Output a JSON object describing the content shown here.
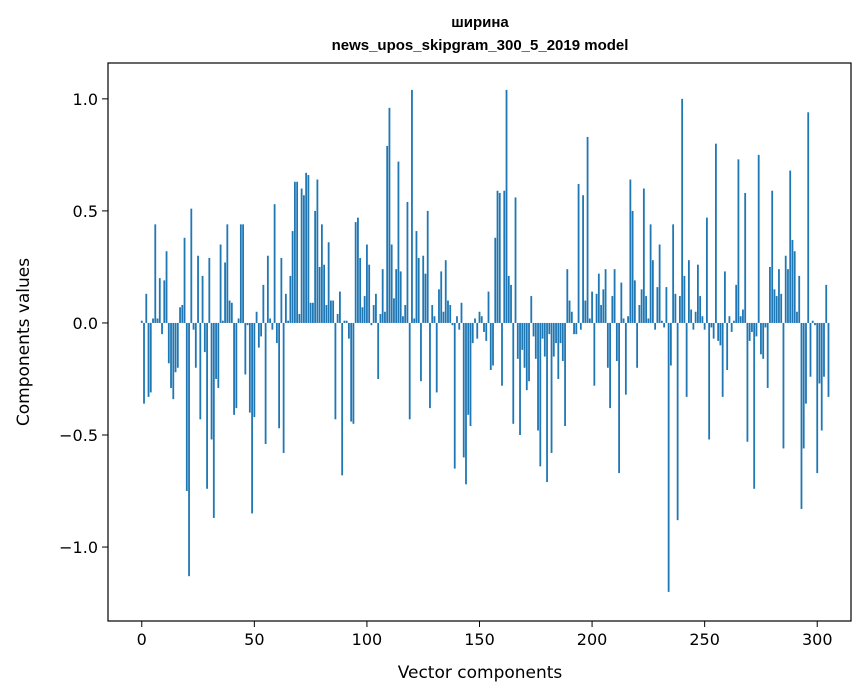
{
  "chart_data": {
    "type": "bar",
    "title": "ширина",
    "subtitle": "news_upos_skipgram_300_5_2019 model",
    "xlabel": "Vector components",
    "ylabel": "Components values",
    "xlim": [
      -15,
      315
    ],
    "ylim": [
      -1.33,
      1.16
    ],
    "xticks": [
      0,
      50,
      100,
      150,
      200,
      250,
      300
    ],
    "xtick_labels": [
      "0",
      "50",
      "100",
      "150",
      "200",
      "250",
      "300"
    ],
    "yticks": [
      -1.0,
      -0.5,
      0.0,
      0.5,
      1.0
    ],
    "ytick_labels": [
      "−1.0",
      "−0.5",
      "0.0",
      "0.5",
      "1.0"
    ],
    "grid": false,
    "bar_color": "#1f77b4",
    "values": [
      0.01,
      -0.36,
      0.13,
      -0.33,
      -0.31,
      0.02,
      0.44,
      0.02,
      0.2,
      -0.05,
      0.19,
      0.32,
      -0.18,
      -0.29,
      -0.34,
      -0.22,
      -0.2,
      0.07,
      0.08,
      0.38,
      -0.75,
      -1.13,
      0.51,
      -0.03,
      -0.2,
      0.3,
      -0.43,
      0.21,
      -0.13,
      -0.74,
      0.29,
      -0.52,
      -0.87,
      -0.25,
      -0.29,
      0.35,
      0.01,
      0.27,
      0.44,
      0.1,
      0.09,
      -0.41,
      -0.38,
      0.02,
      0.44,
      0.44,
      -0.23,
      -0.01,
      -0.4,
      -0.85,
      -0.42,
      0.05,
      -0.11,
      -0.06,
      0.17,
      -0.54,
      0.3,
      0.02,
      -0.03,
      0.53,
      -0.09,
      -0.47,
      0.29,
      -0.58,
      0.13,
      0.01,
      0.21,
      0.41,
      0.63,
      0.63,
      0.04,
      0.6,
      0.57,
      0.67,
      0.66,
      0.09,
      0.09,
      0.5,
      0.64,
      0.25,
      0.44,
      0.26,
      0.08,
      0.36,
      0.1,
      0.1,
      -0.43,
      0.04,
      0.14,
      -0.68,
      0.01,
      0.01,
      -0.07,
      -0.44,
      -0.45,
      0.45,
      0.47,
      0.29,
      0.07,
      0.12,
      0.35,
      0.26,
      -0.01,
      0.08,
      0.13,
      -0.25,
      0.04,
      0.24,
      0.05,
      0.79,
      0.96,
      0.35,
      0.11,
      0.24,
      0.72,
      0.23,
      0.03,
      0.08,
      0.54,
      -0.43,
      1.04,
      0.02,
      0.41,
      0.29,
      -0.26,
      0.3,
      0.22,
      0.5,
      -0.38,
      0.08,
      0.03,
      -0.31,
      0.15,
      0.23,
      0.05,
      0.28,
      0.1,
      0.08,
      -0.01,
      -0.65,
      0.03,
      -0.03,
      0.09,
      -0.6,
      -0.72,
      -0.41,
      -0.46,
      -0.09,
      0.02,
      -0.07,
      0.05,
      0.03,
      -0.04,
      -0.08,
      0.14,
      -0.21,
      -0.19,
      0.38,
      0.59,
      0.58,
      -0.28,
      0.59,
      1.04,
      0.21,
      0.17,
      -0.45,
      0.56,
      -0.16,
      -0.5,
      -0.12,
      -0.2,
      -0.3,
      -0.26,
      0.12,
      -0.06,
      -0.16,
      -0.48,
      -0.64,
      -0.07,
      -0.15,
      -0.71,
      -0.05,
      -0.58,
      -0.15,
      -0.09,
      -0.25,
      -0.09,
      -0.17,
      -0.46,
      0.24,
      0.1,
      0.05,
      -0.05,
      -0.05,
      0.62,
      -0.03,
      0.57,
      0.1,
      0.83,
      0.02,
      0.14,
      -0.28,
      0.13,
      0.22,
      0.08,
      0.15,
      0.24,
      -0.2,
      -0.38,
      0.12,
      0.24,
      -0.17,
      -0.67,
      0.18,
      0.02,
      -0.32,
      0.03,
      0.64,
      0.5,
      0.19,
      -0.2,
      0.08,
      0.15,
      0.6,
      0.12,
      0.02,
      0.44,
      0.28,
      -0.03,
      0.16,
      0.35,
      0.01,
      -0.02,
      0.16,
      -1.2,
      -0.19,
      0.44,
      0.13,
      -0.88,
      0.12,
      1.0,
      0.21,
      -0.33,
      0.28,
      0.06,
      -0.03,
      0.05,
      0.26,
      0.12,
      0.03,
      -0.03,
      0.47,
      -0.52,
      -0.02,
      -0.07,
      0.8,
      -0.08,
      -0.1,
      -0.33,
      0.23,
      -0.21,
      0.03,
      -0.04,
      0.01,
      0.17,
      0.73,
      0.03,
      0.06,
      0.58,
      -0.53,
      -0.08,
      -0.04,
      -0.74,
      -0.06,
      0.75,
      -0.14,
      -0.16,
      -0.02,
      -0.29,
      0.25,
      0.59,
      0.15,
      0.12,
      0.24,
      0.13,
      -0.56,
      0.3,
      0.24,
      0.68,
      0.37,
      0.32,
      0.05,
      0.21,
      -0.83,
      -0.56,
      -0.36,
      0.94,
      -0.24,
      0.01,
      -0.01,
      -0.67,
      -0.27,
      -0.48,
      -0.24,
      0.17,
      -0.33
    ]
  }
}
